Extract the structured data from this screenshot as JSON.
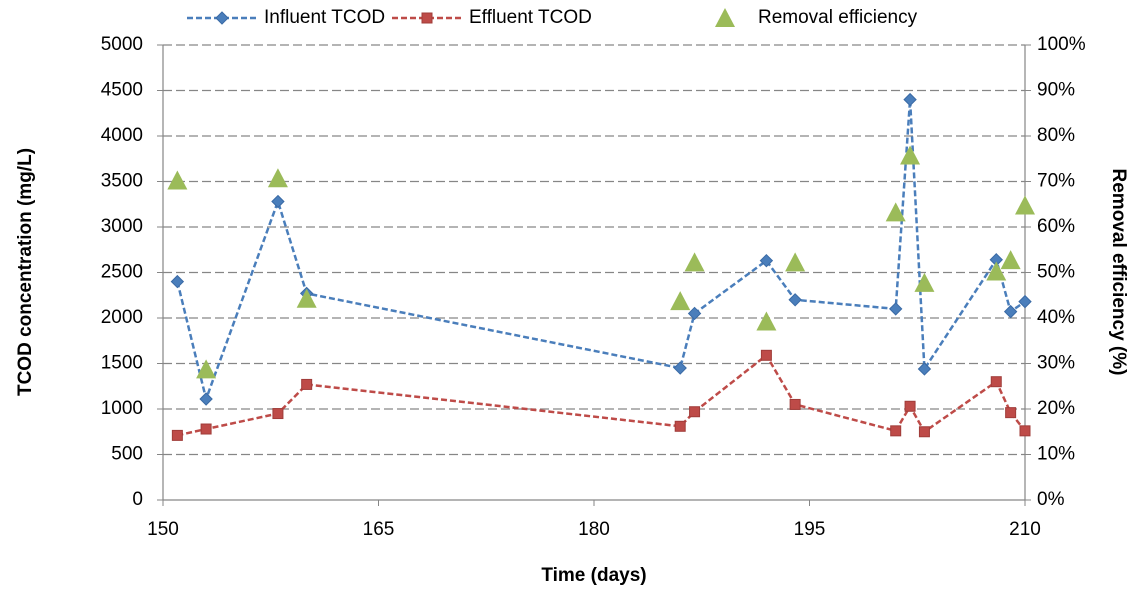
{
  "chart_data": {
    "type": "line",
    "x_label": "Time (days)",
    "y_label": "TCOD concentration (mg/L)",
    "y2_label": "Removal efficiency (%)",
    "xlim": [
      150,
      210
    ],
    "xticks": [
      150,
      165,
      180,
      195,
      210
    ],
    "ylim": [
      0,
      5000
    ],
    "yticks": [
      0,
      500,
      1000,
      1500,
      2000,
      2500,
      3000,
      3500,
      4000,
      4500,
      5000
    ],
    "y2lim": [
      0,
      100
    ],
    "y2ticks": [
      {
        "value": 0,
        "label": "0%"
      },
      {
        "value": 10,
        "label": "10%"
      },
      {
        "value": 20,
        "label": "20%"
      },
      {
        "value": 30,
        "label": "30%"
      },
      {
        "value": 40,
        "label": "40%"
      },
      {
        "value": 50,
        "label": "50%"
      },
      {
        "value": 60,
        "label": "60%"
      },
      {
        "value": 70,
        "label": "70%"
      },
      {
        "value": 80,
        "label": "80%"
      },
      {
        "value": 90,
        "label": "90%"
      },
      {
        "value": 100,
        "label": "100%"
      }
    ],
    "grid": true,
    "legend": "top",
    "x": [
      151,
      153,
      158,
      160,
      186,
      187,
      192,
      194,
      201,
      202,
      203,
      208,
      209,
      210
    ],
    "series": [
      {
        "name": "Influent TCOD",
        "color": "#4a7ebb",
        "marker": "diamond",
        "line": true,
        "values": [
          2400,
          1110,
          3280,
          2270,
          1450,
          2050,
          2630,
          2200,
          2100,
          4400,
          1440,
          2640,
          2070,
          2180
        ]
      },
      {
        "name": "Effluent TCOD",
        "color": "#be4b48",
        "marker": "square",
        "line": true,
        "values": [
          710,
          780,
          950,
          1270,
          810,
          970,
          1590,
          1050,
          760,
          1030,
          750,
          1300,
          960,
          760
        ]
      },
      {
        "name": "Removal efficiency",
        "color": "#9bbb59",
        "marker": "triangle",
        "line": false,
        "axis": "y2",
        "values": [
          70,
          28.5,
          70.5,
          44,
          43.5,
          52,
          39,
          52,
          63,
          75.5,
          47.5,
          50,
          52.5,
          64.5
        ]
      }
    ]
  }
}
